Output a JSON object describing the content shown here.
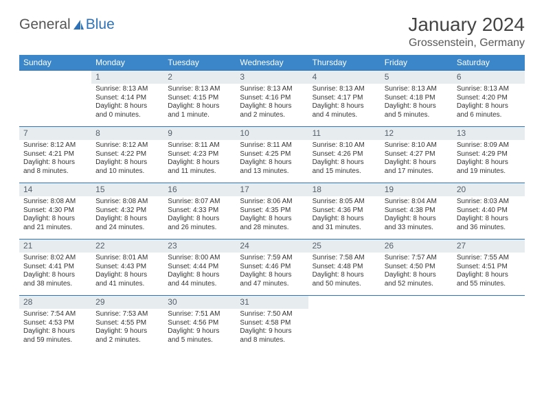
{
  "logo": {
    "text_general": "General",
    "text_blue": "Blue"
  },
  "title": "January 2024",
  "location": "Grossenstein, Germany",
  "calendar": {
    "header_bg": "#3a86c8",
    "header_fg": "#ffffff",
    "daybar_bg": "#e7ecef",
    "daybar_border": "#2d72b8",
    "text_color": "#333333",
    "days_of_week": [
      "Sunday",
      "Monday",
      "Tuesday",
      "Wednesday",
      "Thursday",
      "Friday",
      "Saturday"
    ],
    "weeks": [
      [
        null,
        {
          "n": "1",
          "sr": "Sunrise: 8:13 AM",
          "ss": "Sunset: 4:14 PM",
          "dl": "Daylight: 8 hours and 0 minutes."
        },
        {
          "n": "2",
          "sr": "Sunrise: 8:13 AM",
          "ss": "Sunset: 4:15 PM",
          "dl": "Daylight: 8 hours and 1 minute."
        },
        {
          "n": "3",
          "sr": "Sunrise: 8:13 AM",
          "ss": "Sunset: 4:16 PM",
          "dl": "Daylight: 8 hours and 2 minutes."
        },
        {
          "n": "4",
          "sr": "Sunrise: 8:13 AM",
          "ss": "Sunset: 4:17 PM",
          "dl": "Daylight: 8 hours and 4 minutes."
        },
        {
          "n": "5",
          "sr": "Sunrise: 8:13 AM",
          "ss": "Sunset: 4:18 PM",
          "dl": "Daylight: 8 hours and 5 minutes."
        },
        {
          "n": "6",
          "sr": "Sunrise: 8:13 AM",
          "ss": "Sunset: 4:20 PM",
          "dl": "Daylight: 8 hours and 6 minutes."
        }
      ],
      [
        {
          "n": "7",
          "sr": "Sunrise: 8:12 AM",
          "ss": "Sunset: 4:21 PM",
          "dl": "Daylight: 8 hours and 8 minutes."
        },
        {
          "n": "8",
          "sr": "Sunrise: 8:12 AM",
          "ss": "Sunset: 4:22 PM",
          "dl": "Daylight: 8 hours and 10 minutes."
        },
        {
          "n": "9",
          "sr": "Sunrise: 8:11 AM",
          "ss": "Sunset: 4:23 PM",
          "dl": "Daylight: 8 hours and 11 minutes."
        },
        {
          "n": "10",
          "sr": "Sunrise: 8:11 AM",
          "ss": "Sunset: 4:25 PM",
          "dl": "Daylight: 8 hours and 13 minutes."
        },
        {
          "n": "11",
          "sr": "Sunrise: 8:10 AM",
          "ss": "Sunset: 4:26 PM",
          "dl": "Daylight: 8 hours and 15 minutes."
        },
        {
          "n": "12",
          "sr": "Sunrise: 8:10 AM",
          "ss": "Sunset: 4:27 PM",
          "dl": "Daylight: 8 hours and 17 minutes."
        },
        {
          "n": "13",
          "sr": "Sunrise: 8:09 AM",
          "ss": "Sunset: 4:29 PM",
          "dl": "Daylight: 8 hours and 19 minutes."
        }
      ],
      [
        {
          "n": "14",
          "sr": "Sunrise: 8:08 AM",
          "ss": "Sunset: 4:30 PM",
          "dl": "Daylight: 8 hours and 21 minutes."
        },
        {
          "n": "15",
          "sr": "Sunrise: 8:08 AM",
          "ss": "Sunset: 4:32 PM",
          "dl": "Daylight: 8 hours and 24 minutes."
        },
        {
          "n": "16",
          "sr": "Sunrise: 8:07 AM",
          "ss": "Sunset: 4:33 PM",
          "dl": "Daylight: 8 hours and 26 minutes."
        },
        {
          "n": "17",
          "sr": "Sunrise: 8:06 AM",
          "ss": "Sunset: 4:35 PM",
          "dl": "Daylight: 8 hours and 28 minutes."
        },
        {
          "n": "18",
          "sr": "Sunrise: 8:05 AM",
          "ss": "Sunset: 4:36 PM",
          "dl": "Daylight: 8 hours and 31 minutes."
        },
        {
          "n": "19",
          "sr": "Sunrise: 8:04 AM",
          "ss": "Sunset: 4:38 PM",
          "dl": "Daylight: 8 hours and 33 minutes."
        },
        {
          "n": "20",
          "sr": "Sunrise: 8:03 AM",
          "ss": "Sunset: 4:40 PM",
          "dl": "Daylight: 8 hours and 36 minutes."
        }
      ],
      [
        {
          "n": "21",
          "sr": "Sunrise: 8:02 AM",
          "ss": "Sunset: 4:41 PM",
          "dl": "Daylight: 8 hours and 38 minutes."
        },
        {
          "n": "22",
          "sr": "Sunrise: 8:01 AM",
          "ss": "Sunset: 4:43 PM",
          "dl": "Daylight: 8 hours and 41 minutes."
        },
        {
          "n": "23",
          "sr": "Sunrise: 8:00 AM",
          "ss": "Sunset: 4:44 PM",
          "dl": "Daylight: 8 hours and 44 minutes."
        },
        {
          "n": "24",
          "sr": "Sunrise: 7:59 AM",
          "ss": "Sunset: 4:46 PM",
          "dl": "Daylight: 8 hours and 47 minutes."
        },
        {
          "n": "25",
          "sr": "Sunrise: 7:58 AM",
          "ss": "Sunset: 4:48 PM",
          "dl": "Daylight: 8 hours and 50 minutes."
        },
        {
          "n": "26",
          "sr": "Sunrise: 7:57 AM",
          "ss": "Sunset: 4:50 PM",
          "dl": "Daylight: 8 hours and 52 minutes."
        },
        {
          "n": "27",
          "sr": "Sunrise: 7:55 AM",
          "ss": "Sunset: 4:51 PM",
          "dl": "Daylight: 8 hours and 55 minutes."
        }
      ],
      [
        {
          "n": "28",
          "sr": "Sunrise: 7:54 AM",
          "ss": "Sunset: 4:53 PM",
          "dl": "Daylight: 8 hours and 59 minutes."
        },
        {
          "n": "29",
          "sr": "Sunrise: 7:53 AM",
          "ss": "Sunset: 4:55 PM",
          "dl": "Daylight: 9 hours and 2 minutes."
        },
        {
          "n": "30",
          "sr": "Sunrise: 7:51 AM",
          "ss": "Sunset: 4:56 PM",
          "dl": "Daylight: 9 hours and 5 minutes."
        },
        {
          "n": "31",
          "sr": "Sunrise: 7:50 AM",
          "ss": "Sunset: 4:58 PM",
          "dl": "Daylight: 9 hours and 8 minutes."
        },
        null,
        null,
        null
      ]
    ]
  }
}
